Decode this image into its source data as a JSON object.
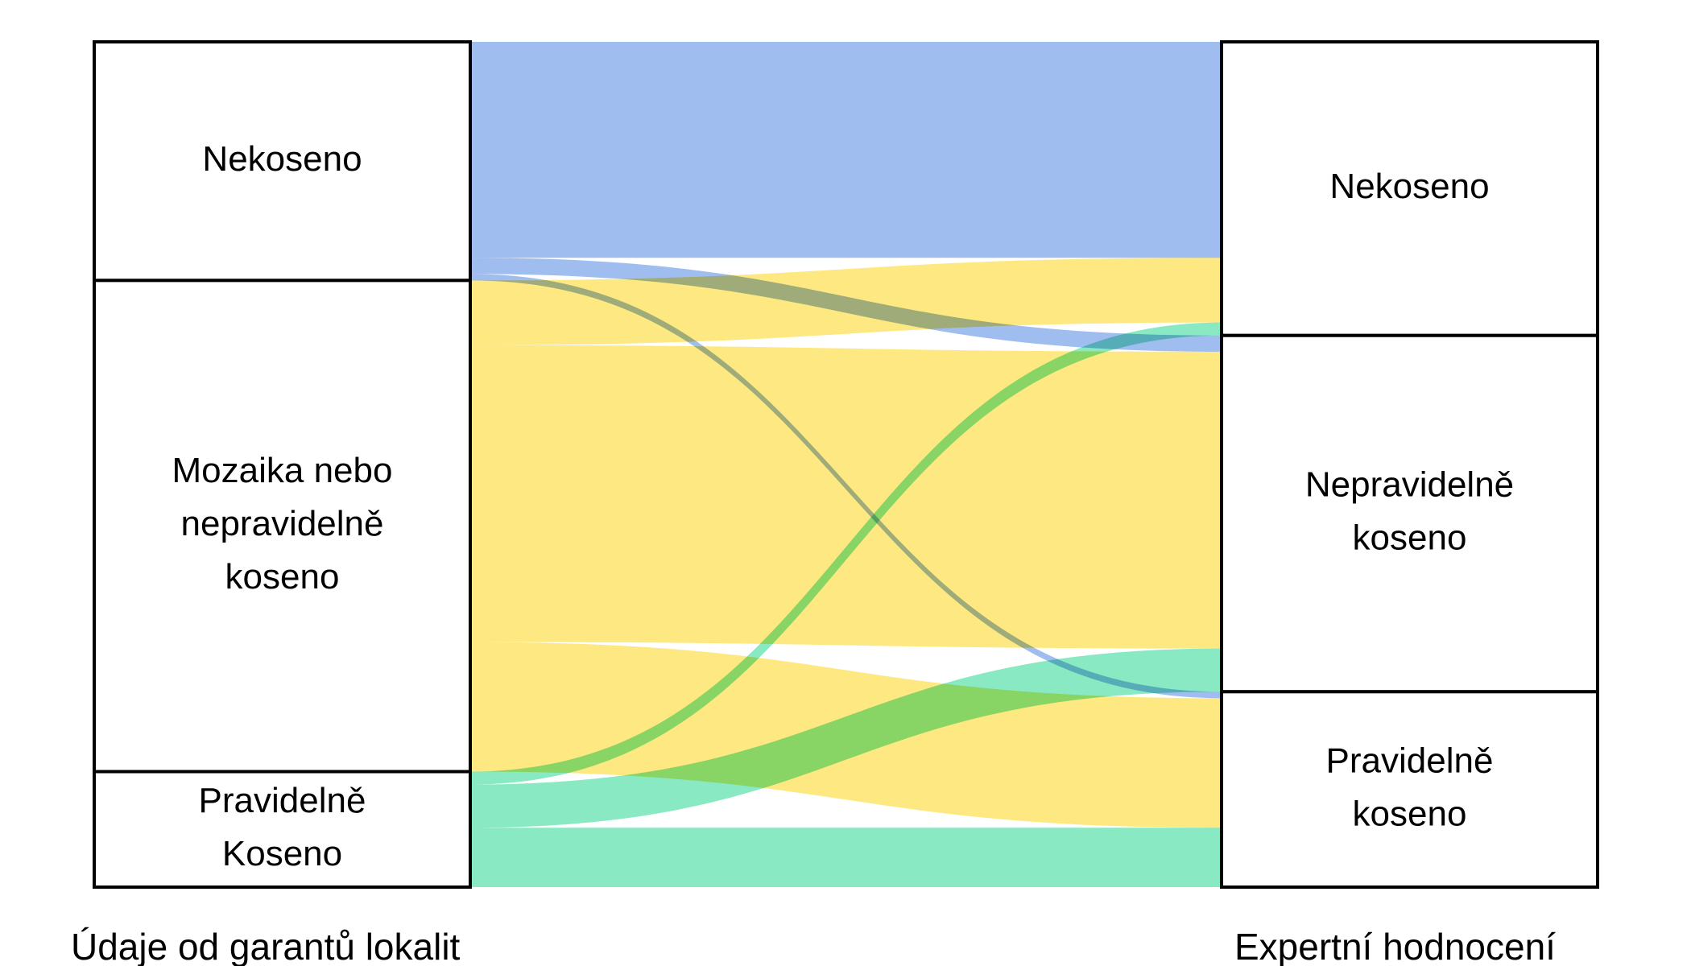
{
  "chart_data": {
    "type": "sankey",
    "left_caption": "Údaje od garantů lokalit",
    "right_caption": "Expertní hodnocení",
    "left_nodes": [
      {
        "id": "L0",
        "lines": [
          "Nekoseno"
        ]
      },
      {
        "id": "L1",
        "lines": [
          "Mozaika nebo",
          "nepravidelně",
          "koseno"
        ]
      },
      {
        "id": "L2",
        "lines": [
          "Pravidelně",
          "Koseno"
        ]
      }
    ],
    "right_nodes": [
      {
        "id": "R0",
        "lines": [
          "Nekoseno"
        ]
      },
      {
        "id": "R1",
        "lines": [
          "Nepravidelně",
          "koseno"
        ]
      },
      {
        "id": "R2",
        "lines": [
          "Pravidelně",
          "koseno"
        ]
      }
    ],
    "flows": [
      {
        "from": "L0",
        "to": "R0",
        "value": 200
      },
      {
        "from": "L0",
        "to": "R1",
        "value": 15
      },
      {
        "from": "L0",
        "to": "R2",
        "value": 6
      },
      {
        "from": "L1",
        "to": "R0",
        "value": 60
      },
      {
        "from": "L1",
        "to": "R1",
        "value": 275
      },
      {
        "from": "L1",
        "to": "R2",
        "value": 120
      },
      {
        "from": "L2",
        "to": "R0",
        "value": 12
      },
      {
        "from": "L2",
        "to": "R1",
        "value": 40
      },
      {
        "from": "L2",
        "to": "R2",
        "value": 55
      }
    ],
    "colors": {
      "L0": "#9ebcf0",
      "L1": "#fde880",
      "L2": "#87e9c2"
    }
  }
}
